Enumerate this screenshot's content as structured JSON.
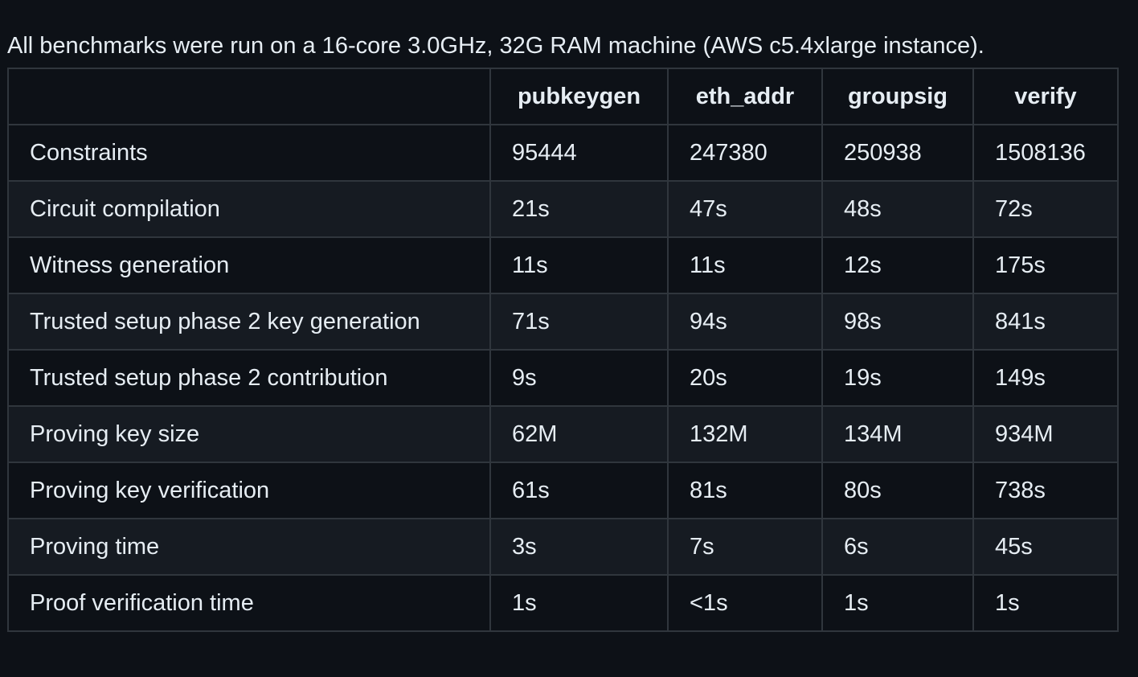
{
  "intro": "All benchmarks were run on a 16-core 3.0GHz, 32G RAM machine (AWS c5.4xlarge instance).",
  "table": {
    "headers": [
      "",
      "pubkeygen",
      "eth_addr",
      "groupsig",
      "verify"
    ],
    "rows": [
      [
        "Constraints",
        "95444",
        "247380",
        "250938",
        "1508136"
      ],
      [
        "Circuit compilation",
        "21s",
        "47s",
        "48s",
        "72s"
      ],
      [
        "Witness generation",
        "11s",
        "11s",
        "12s",
        "175s"
      ],
      [
        "Trusted setup phase 2 key generation",
        "71s",
        "94s",
        "98s",
        "841s"
      ],
      [
        "Trusted setup phase 2 contribution",
        "9s",
        "20s",
        "19s",
        "149s"
      ],
      [
        "Proving key size",
        "62M",
        "132M",
        "134M",
        "934M"
      ],
      [
        "Proving key verification",
        "61s",
        "81s",
        "80s",
        "738s"
      ],
      [
        "Proving time",
        "3s",
        "7s",
        "6s",
        "45s"
      ],
      [
        "Proof verification time",
        "1s",
        "<1s",
        "1s",
        "1s"
      ]
    ]
  }
}
